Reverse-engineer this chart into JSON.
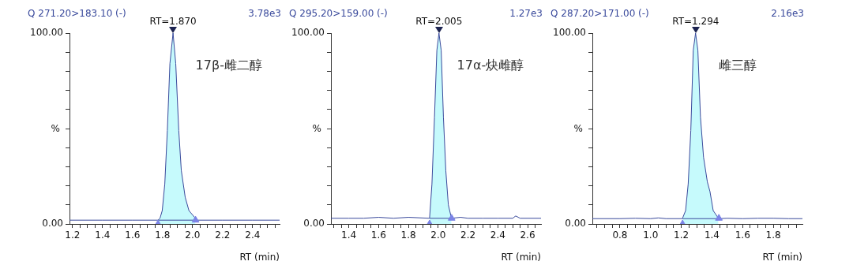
{
  "chart_data": [
    {
      "type": "area",
      "title": "Q 271.20>183.10 (-)",
      "subtitle": "3.78e3",
      "xlabel": "RT (min)",
      "ylabel": "%",
      "marker": "none",
      "legend": false,
      "grid": false,
      "xlim": [
        1.18,
        2.58
      ],
      "ylim": [
        0,
        100
      ],
      "xticks": [
        1.2,
        {
          "value": 1.25,
          "label": null
        },
        {
          "value": 1.3,
          "label": null
        },
        {
          "value": 1.35,
          "label": null
        },
        1.4,
        {
          "value": 1.45,
          "label": null
        },
        {
          "value": 1.5,
          "label": null
        },
        {
          "value": 1.55,
          "label": null
        },
        1.6,
        {
          "value": 1.65,
          "label": null
        },
        {
          "value": 1.7,
          "label": null
        },
        {
          "value": 1.75,
          "label": null
        },
        1.8,
        {
          "value": 1.85,
          "label": null
        },
        {
          "value": 1.9,
          "label": null
        },
        {
          "value": 1.95,
          "label": null
        },
        {
          "value": 2.0,
          "label": "2.0"
        },
        {
          "value": 2.05,
          "label": null
        },
        {
          "value": 2.1,
          "label": null
        },
        {
          "value": 2.15,
          "label": null
        },
        2.2,
        {
          "value": 2.25,
          "label": null
        },
        {
          "value": 2.3,
          "label": null
        },
        {
          "value": 2.35,
          "label": null
        },
        2.4,
        {
          "value": 2.45,
          "label": null
        },
        {
          "value": 2.5,
          "label": null
        },
        {
          "value": 2.55,
          "label": null
        }
      ],
      "yticks": [
        {
          "value": 0,
          "label": "0.00"
        },
        {
          "value": 10,
          "label": null
        },
        {
          "value": 20,
          "label": null
        },
        {
          "value": 30,
          "label": null
        },
        {
          "value": 40,
          "label": null
        },
        {
          "value": 50,
          "label": null
        },
        {
          "value": 60,
          "label": null
        },
        {
          "value": 70,
          "label": null
        },
        {
          "value": 80,
          "label": null
        },
        {
          "value": 90,
          "label": null
        },
        {
          "value": 100,
          "label": "100.00"
        }
      ],
      "annotations": [
        {
          "text": "RT=1.870",
          "x": 1.87,
          "y": 100
        },
        "17β-雌二醇"
      ],
      "series": [
        {
          "type": "line",
          "color": "#3a4a9c",
          "x": [
            1.18,
            1.4,
            1.6,
            1.77,
            2.02,
            2.2,
            2.4,
            2.58
          ],
          "values": [
            2,
            2,
            2,
            2,
            2,
            2,
            2,
            2
          ]
        },
        {
          "type": "area",
          "color": "#c6fafc",
          "x": [
            1.77,
            1.783,
            1.798,
            1.815,
            1.832,
            1.849,
            1.87,
            1.888,
            1.908,
            1.925,
            1.951,
            1.976,
            2.019
          ],
          "values": [
            2,
            3,
            7,
            21,
            49,
            84,
            100,
            84,
            49,
            28,
            14,
            7,
            3
          ]
        },
        {
          "type": "scatter",
          "marker": "triangle",
          "color": "#7b83e6",
          "x": [
            1.77,
            2.02
          ],
          "values": [
            0,
            2
          ]
        }
      ]
    },
    {
      "type": "area",
      "title": "Q 295.20>159.00 (-)",
      "subtitle": "1.27e3",
      "xlabel": "RT (min)",
      "ylabel": "%",
      "marker": "none",
      "legend": false,
      "grid": false,
      "xlim": [
        1.28,
        2.69
      ],
      "ylim": [
        0,
        100
      ],
      "xticks": [
        {
          "value": 1.3,
          "label": null
        },
        {
          "value": 1.35,
          "label": null
        },
        1.4,
        {
          "value": 1.45,
          "label": null
        },
        {
          "value": 1.5,
          "label": null
        },
        {
          "value": 1.55,
          "label": null
        },
        1.6,
        {
          "value": 1.65,
          "label": null
        },
        {
          "value": 1.7,
          "label": null
        },
        {
          "value": 1.75,
          "label": null
        },
        1.8,
        {
          "value": 1.85,
          "label": null
        },
        {
          "value": 1.9,
          "label": null
        },
        {
          "value": 1.95,
          "label": null
        },
        {
          "value": 2.0,
          "label": "2.0"
        },
        {
          "value": 2.05,
          "label": null
        },
        {
          "value": 2.1,
          "label": null
        },
        {
          "value": 2.15,
          "label": null
        },
        2.2,
        {
          "value": 2.25,
          "label": null
        },
        {
          "value": 2.3,
          "label": null
        },
        {
          "value": 2.35,
          "label": null
        },
        2.4,
        {
          "value": 2.45,
          "label": null
        },
        {
          "value": 2.5,
          "label": null
        },
        {
          "value": 2.55,
          "label": null
        },
        2.6,
        {
          "value": 2.65,
          "label": null
        }
      ],
      "yticks": [
        {
          "value": 0,
          "label": "0.00"
        },
        {
          "value": 10,
          "label": null
        },
        {
          "value": 20,
          "label": null
        },
        {
          "value": 30,
          "label": null
        },
        {
          "value": 40,
          "label": null
        },
        {
          "value": 50,
          "label": null
        },
        {
          "value": 60,
          "label": null
        },
        {
          "value": 70,
          "label": null
        },
        {
          "value": 80,
          "label": null
        },
        {
          "value": 90,
          "label": null
        },
        {
          "value": 100,
          "label": "100.00"
        }
      ],
      "annotations": [
        {
          "text": "RT=2.005",
          "x": 2.005,
          "y": 100
        },
        "17α-炔雌醇"
      ],
      "series": [
        {
          "type": "line",
          "color": "#3a4a9c",
          "x": [
            1.28,
            1.4,
            1.5,
            1.6,
            1.7,
            1.8,
            1.94,
            2.09,
            2.15,
            2.2,
            2.3,
            2.4,
            2.5,
            2.52,
            2.55,
            2.6,
            2.69
          ],
          "values": [
            3,
            3,
            3,
            3.5,
            3,
            3.5,
            3,
            3,
            3.5,
            3,
            3,
            3,
            3,
            4.2,
            3,
            3,
            3
          ]
        },
        {
          "type": "area",
          "color": "#c6fafc",
          "x": [
            1.942,
            1.958,
            1.975,
            1.991,
            2.005,
            2.02,
            2.035,
            2.051,
            2.068,
            2.089
          ],
          "values": [
            3,
            21,
            56,
            91,
            100,
            91,
            56,
            28,
            10,
            3
          ]
        },
        {
          "type": "scatter",
          "marker": "triangle",
          "color": "#7b83e6",
          "x": [
            1.942,
            2.09
          ],
          "values": [
            0,
            3
          ]
        }
      ]
    },
    {
      "type": "area",
      "title": "Q 287.20>171.00 (-)",
      "subtitle": "2.16e3",
      "xlabel": "RT (min)",
      "ylabel": "%",
      "marker": "none",
      "legend": false,
      "grid": false,
      "xlim": [
        0.62,
        1.99
      ],
      "ylim": [
        0,
        100
      ],
      "xticks": [
        {
          "value": 0.65,
          "label": null
        },
        {
          "value": 0.7,
          "label": null
        },
        {
          "value": 0.75,
          "label": null
        },
        0.8,
        {
          "value": 0.85,
          "label": null
        },
        {
          "value": 0.9,
          "label": null
        },
        {
          "value": 0.95,
          "label": null
        },
        {
          "value": 1.0,
          "label": "1.0"
        },
        {
          "value": 1.05,
          "label": null
        },
        {
          "value": 1.1,
          "label": null
        },
        {
          "value": 1.15,
          "label": null
        },
        1.2,
        {
          "value": 1.25,
          "label": null
        },
        {
          "value": 1.3,
          "label": null
        },
        {
          "value": 1.35,
          "label": null
        },
        1.4,
        {
          "value": 1.45,
          "label": null
        },
        {
          "value": 1.5,
          "label": null
        },
        {
          "value": 1.55,
          "label": null
        },
        1.6,
        {
          "value": 1.65,
          "label": null
        },
        {
          "value": 1.7,
          "label": null
        },
        {
          "value": 1.75,
          "label": null
        },
        1.8,
        {
          "value": 1.85,
          "label": null
        },
        {
          "value": 1.9,
          "label": null
        },
        {
          "value": 1.95,
          "label": null
        }
      ],
      "yticks": [
        {
          "value": 0,
          "label": "0.00"
        },
        {
          "value": 10,
          "label": null
        },
        {
          "value": 20,
          "label": null
        },
        {
          "value": 30,
          "label": null
        },
        {
          "value": 40,
          "label": null
        },
        {
          "value": 50,
          "label": null
        },
        {
          "value": 60,
          "label": null
        },
        {
          "value": 70,
          "label": null
        },
        {
          "value": 80,
          "label": null
        },
        {
          "value": 90,
          "label": null
        },
        {
          "value": 100,
          "label": "100.00"
        }
      ],
      "annotations": [
        {
          "text": "RT=1.294",
          "x": 1.294,
          "y": 100
        },
        "雌三醇"
      ],
      "series": [
        {
          "type": "line",
          "color": "#3a4a9c",
          "x": [
            0.62,
            0.8,
            0.9,
            1.0,
            1.05,
            1.1,
            1.208,
            1.442,
            1.5,
            1.6,
            1.7,
            1.8,
            1.9,
            1.99
          ],
          "values": [
            2.8,
            2.8,
            3,
            2.8,
            3.2,
            2.8,
            2.8,
            2.8,
            3,
            2.8,
            3,
            3,
            2.8,
            2.8
          ]
        },
        {
          "type": "area",
          "color": "#c6fafc",
          "x": [
            1.208,
            1.228,
            1.245,
            1.262,
            1.278,
            1.293,
            1.308,
            1.325,
            1.345,
            1.37,
            1.387,
            1.408,
            1.442
          ],
          "values": [
            3,
            7,
            21,
            49,
            91,
            100,
            91,
            56,
            35,
            22,
            17,
            7,
            3
          ]
        },
        {
          "type": "scatter",
          "marker": "triangle",
          "color": "#7b83e6",
          "x": [
            1.208,
            1.445
          ],
          "values": [
            0,
            3
          ]
        }
      ]
    }
  ]
}
